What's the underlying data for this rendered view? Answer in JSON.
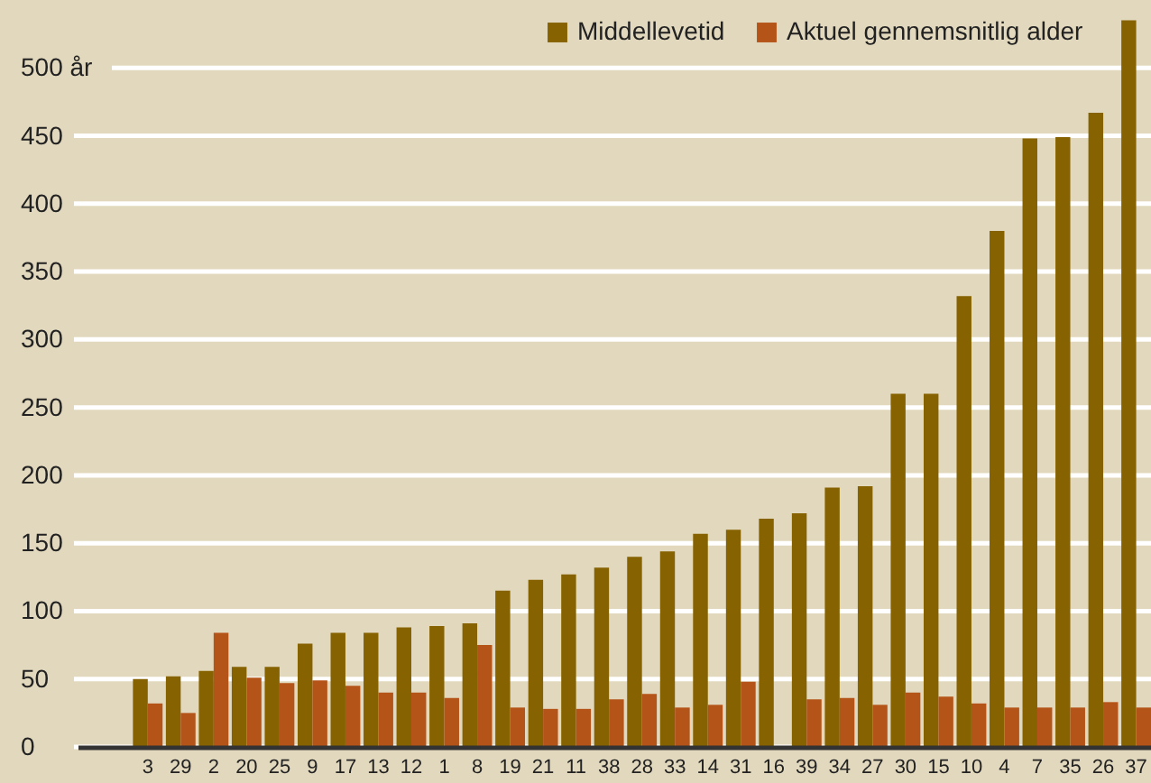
{
  "chart_data": {
    "type": "bar",
    "categories": [
      "3",
      "29",
      "2",
      "20",
      "25",
      "9",
      "17",
      "13",
      "12",
      "1",
      "8",
      "19",
      "21",
      "11",
      "38",
      "28",
      "33",
      "14",
      "31",
      "16",
      "39",
      "34",
      "27",
      "30",
      "15",
      "10",
      "4",
      "7",
      "35",
      "26",
      "37"
    ],
    "series": [
      {
        "name": "Middellevetid",
        "color": "#866300",
        "values": [
          50,
          52,
          56,
          59,
          59,
          76,
          84,
          84,
          88,
          89,
          91,
          115,
          123,
          127,
          132,
          140,
          144,
          157,
          160,
          168,
          172,
          191,
          192,
          260,
          260,
          332,
          380,
          448,
          449,
          467,
          535
        ]
      },
      {
        "name": "Aktuel gennemsnitlig alder",
        "color": "#b55418",
        "values": [
          32,
          25,
          84,
          51,
          47,
          49,
          45,
          40,
          40,
          36,
          75,
          29,
          28,
          28,
          35,
          39,
          29,
          31,
          48,
          null,
          35,
          36,
          31,
          40,
          37,
          32,
          29,
          29,
          29,
          33,
          29
        ]
      }
    ],
    "ylim": [
      0,
      550
    ],
    "yticks": [
      0,
      50,
      100,
      150,
      200,
      250,
      300,
      350,
      400,
      450,
      {
        "value": 500,
        "label": "500 år"
      }
    ],
    "grid": "y",
    "legend": "top right"
  }
}
